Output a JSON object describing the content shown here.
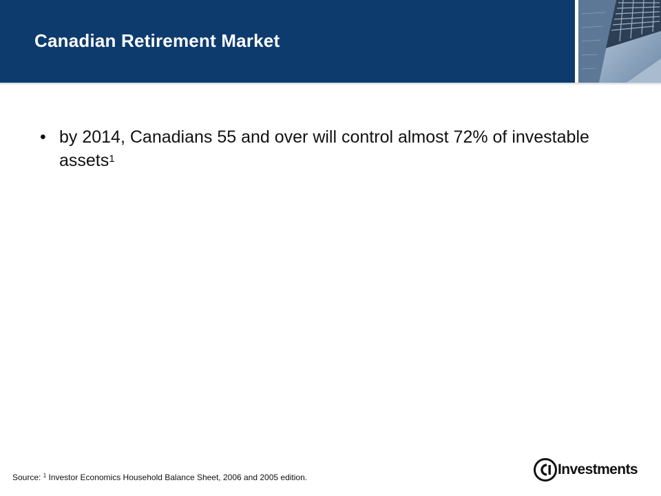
{
  "header": {
    "title": "Canadian Retirement Market",
    "photo_icon": "building-photo",
    "background_color": "#0d3b6e"
  },
  "bullet": {
    "marker": "•",
    "text": "by 2014, Canadians 55 and over will control almost 72% of investable assets",
    "footnote_ref": "1"
  },
  "footnote": {
    "prefix": "Source:",
    "ref": "1",
    "text": "Investor Economics Household Balance Sheet, 2006 and 2005 edition."
  },
  "logo": {
    "mark_text": "CI",
    "word": "Investments"
  }
}
